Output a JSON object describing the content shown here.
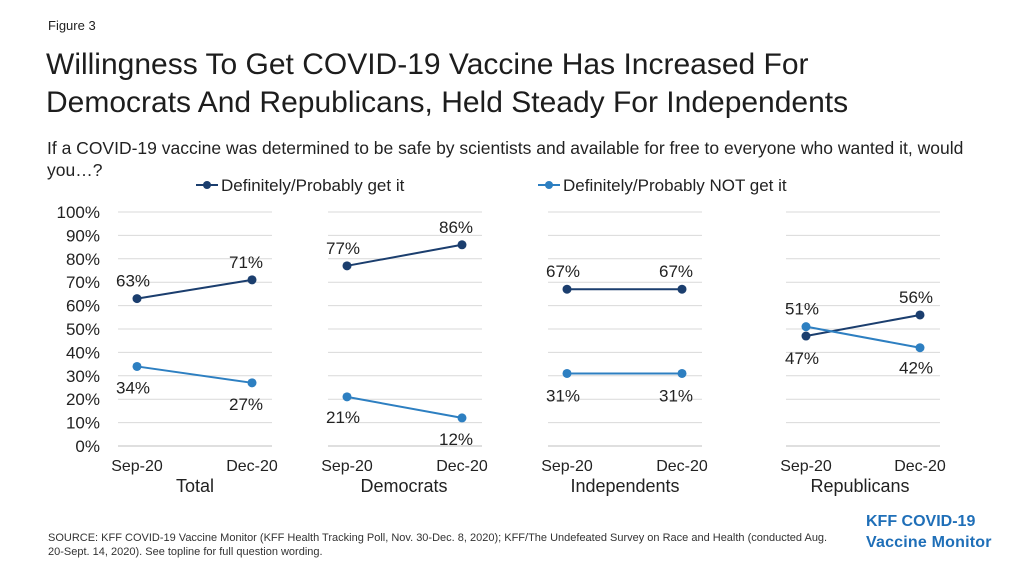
{
  "figure_label": "Figure 3",
  "title_lines": [
    "Willingness To Get COVID-19 Vaccine Has Increased For",
    "Democrats And Republicans, Held Steady For Independents"
  ],
  "subtitle": "If a COVID-19 vaccine was determined to be safe by scientists and available for free to everyone who wanted it, would you…?",
  "source": "SOURCE: KFF COVID-19 Vaccine Monitor (KFF Health Tracking Poll, Nov. 30-Dec. 8, 2020); KFF/The Undefeated Survey on Race and Health (conducted Aug. 20-Sept. 14, 2020). See topline for full question wording.",
  "logo": {
    "line1": "KFF COVID-19",
    "line2": "Vaccine Monitor"
  },
  "colors": {
    "get": "#1b3e6e",
    "not_get": "#2d7fc1",
    "grid": "#d9d9d9",
    "text": "#222222"
  },
  "chart_data": {
    "type": "line",
    "legend": {
      "placement": "top",
      "entries": [
        "Definitely/Probably get it",
        "Definitely/Probably NOT get it"
      ]
    },
    "y_ticks": [
      "100%",
      "90%",
      "80%",
      "70%",
      "60%",
      "50%",
      "40%",
      "30%",
      "20%",
      "10%",
      "0%"
    ],
    "ylim": [
      0,
      100
    ],
    "grid": true,
    "x_categories": [
      "Sep-20",
      "Dec-20"
    ],
    "panels": [
      {
        "name": "Total",
        "series": [
          {
            "name": "Definitely/Probably get it",
            "values": [
              63,
              71
            ],
            "labels": [
              "63%",
              "71%"
            ]
          },
          {
            "name": "Definitely/Probably NOT get it",
            "values": [
              34,
              27
            ],
            "labels": [
              "34%",
              "27%"
            ]
          }
        ]
      },
      {
        "name": "Democrats",
        "series": [
          {
            "name": "Definitely/Probably get it",
            "values": [
              77,
              86
            ],
            "labels": [
              "77%",
              "86%"
            ]
          },
          {
            "name": "Definitely/Probably NOT get it",
            "values": [
              21,
              12
            ],
            "labels": [
              "21%",
              "12%"
            ]
          }
        ]
      },
      {
        "name": "Independents",
        "series": [
          {
            "name": "Definitely/Probably get it",
            "values": [
              67,
              67
            ],
            "labels": [
              "67%",
              "67%"
            ]
          },
          {
            "name": "Definitely/Probably NOT get it",
            "values": [
              31,
              31
            ],
            "labels": [
              "31%",
              "31%"
            ]
          }
        ]
      },
      {
        "name": "Republicans",
        "series": [
          {
            "name": "Definitely/Probably get it",
            "values": [
              47,
              56
            ],
            "labels": [
              "47%",
              "56%"
            ]
          },
          {
            "name": "Definitely/Probably NOT get it",
            "values": [
              51,
              42
            ],
            "labels": [
              "51%",
              "42%"
            ]
          }
        ]
      }
    ]
  }
}
